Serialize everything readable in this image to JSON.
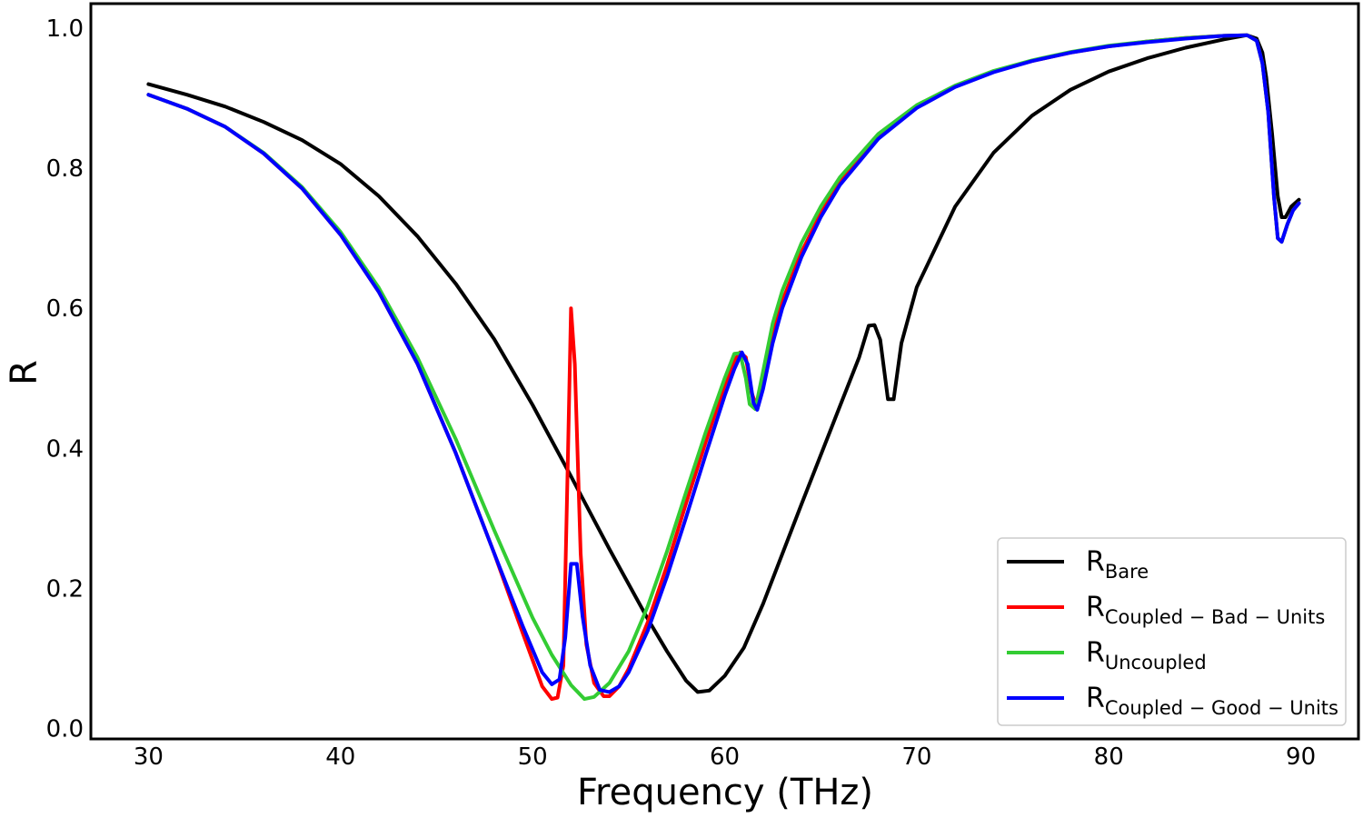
{
  "chart_data": {
    "type": "line",
    "title": "",
    "xlabel": "Frequency (THz)",
    "ylabel": "R",
    "xlim": [
      27,
      93
    ],
    "ylim": [
      -0.015,
      1.035
    ],
    "xticks": [
      30,
      40,
      50,
      60,
      70,
      80,
      90
    ],
    "xtick_labels": [
      "30",
      "40",
      "50",
      "60",
      "70",
      "80",
      "90"
    ],
    "yticks": [
      0.0,
      0.2,
      0.4,
      0.6,
      0.8,
      1.0
    ],
    "ytick_labels": [
      "0.0",
      "0.2",
      "0.4",
      "0.6",
      "0.8",
      "1.0"
    ],
    "grid": false,
    "legend_position": "lower-right",
    "series": [
      {
        "name": "R_Bare",
        "label_main": "R",
        "label_sub": "Bare",
        "color": "#000000",
        "points": [
          [
            30,
            0.92
          ],
          [
            32,
            0.905
          ],
          [
            34,
            0.888
          ],
          [
            36,
            0.866
          ],
          [
            38,
            0.84
          ],
          [
            40,
            0.806
          ],
          [
            42,
            0.76
          ],
          [
            44,
            0.703
          ],
          [
            46,
            0.635
          ],
          [
            48,
            0.556
          ],
          [
            50,
            0.462
          ],
          [
            52,
            0.36
          ],
          [
            54,
            0.256
          ],
          [
            56,
            0.156
          ],
          [
            57,
            0.11
          ],
          [
            58,
            0.068
          ],
          [
            58.6,
            0.052
          ],
          [
            59.2,
            0.054
          ],
          [
            60,
            0.075
          ],
          [
            61,
            0.115
          ],
          [
            62,
            0.178
          ],
          [
            64,
            0.32
          ],
          [
            66,
            0.46
          ],
          [
            67,
            0.53
          ],
          [
            67.5,
            0.575
          ],
          [
            67.8,
            0.576
          ],
          [
            68.1,
            0.555
          ],
          [
            68.5,
            0.47
          ],
          [
            68.8,
            0.47
          ],
          [
            69.2,
            0.55
          ],
          [
            70,
            0.63
          ],
          [
            72,
            0.745
          ],
          [
            74,
            0.822
          ],
          [
            76,
            0.875
          ],
          [
            78,
            0.912
          ],
          [
            80,
            0.938
          ],
          [
            82,
            0.957
          ],
          [
            84,
            0.972
          ],
          [
            86,
            0.984
          ],
          [
            87.2,
            0.99
          ],
          [
            87.7,
            0.985
          ],
          [
            88,
            0.965
          ],
          [
            88.2,
            0.93
          ],
          [
            88.5,
            0.85
          ],
          [
            88.8,
            0.76
          ],
          [
            89,
            0.73
          ],
          [
            89.2,
            0.73
          ],
          [
            89.5,
            0.745
          ],
          [
            89.9,
            0.755
          ]
        ]
      },
      {
        "name": "R_Coupled-Bad-Units",
        "label_main": "R",
        "label_sub": "Coupled − Bad − Units",
        "color": "#ff0000",
        "points": [
          [
            30,
            0.905
          ],
          [
            32,
            0.885
          ],
          [
            34,
            0.859
          ],
          [
            36,
            0.821
          ],
          [
            38,
            0.771
          ],
          [
            40,
            0.705
          ],
          [
            42,
            0.623
          ],
          [
            44,
            0.521
          ],
          [
            46,
            0.393
          ],
          [
            48,
            0.25
          ],
          [
            49.5,
            0.135
          ],
          [
            50.5,
            0.06
          ],
          [
            51,
            0.042
          ],
          [
            51.3,
            0.044
          ],
          [
            51.6,
            0.09
          ],
          [
            51.85,
            0.4
          ],
          [
            52,
            0.6
          ],
          [
            52.2,
            0.52
          ],
          [
            52.5,
            0.25
          ],
          [
            52.8,
            0.12
          ],
          [
            53.2,
            0.065
          ],
          [
            53.7,
            0.046
          ],
          [
            54,
            0.046
          ],
          [
            54.5,
            0.06
          ],
          [
            55,
            0.085
          ],
          [
            56,
            0.152
          ],
          [
            57,
            0.233
          ],
          [
            58,
            0.322
          ],
          [
            59,
            0.408
          ],
          [
            60,
            0.49
          ],
          [
            60.5,
            0.525
          ],
          [
            60.8,
            0.537
          ],
          [
            61.1,
            0.53
          ],
          [
            61.4,
            0.48
          ],
          [
            61.7,
            0.456
          ],
          [
            62,
            0.5
          ],
          [
            62.5,
            0.565
          ],
          [
            63,
            0.61
          ],
          [
            64,
            0.68
          ],
          [
            65,
            0.735
          ],
          [
            66,
            0.78
          ],
          [
            68,
            0.845
          ],
          [
            70,
            0.888
          ],
          [
            72,
            0.917
          ],
          [
            74,
            0.938
          ],
          [
            76,
            0.953
          ],
          [
            78,
            0.965
          ],
          [
            80,
            0.974
          ],
          [
            82,
            0.981
          ],
          [
            84,
            0.986
          ],
          [
            86,
            0.989
          ],
          [
            87.2,
            0.99
          ],
          [
            87.7,
            0.982
          ],
          [
            88,
            0.95
          ],
          [
            88.3,
            0.88
          ],
          [
            88.6,
            0.76
          ],
          [
            88.8,
            0.7
          ],
          [
            89,
            0.695
          ],
          [
            89.3,
            0.72
          ],
          [
            89.6,
            0.74
          ],
          [
            89.9,
            0.75
          ]
        ]
      },
      {
        "name": "R_Uncoupled",
        "label_main": "R",
        "label_sub": "Uncoupled",
        "color": "#33cc33",
        "points": [
          [
            30,
            0.905
          ],
          [
            32,
            0.885
          ],
          [
            34,
            0.859
          ],
          [
            36,
            0.822
          ],
          [
            38,
            0.773
          ],
          [
            40,
            0.709
          ],
          [
            42,
            0.629
          ],
          [
            44,
            0.53
          ],
          [
            46,
            0.413
          ],
          [
            48,
            0.283
          ],
          [
            50,
            0.158
          ],
          [
            51,
            0.105
          ],
          [
            52,
            0.062
          ],
          [
            52.7,
            0.042
          ],
          [
            53.2,
            0.045
          ],
          [
            54,
            0.065
          ],
          [
            55,
            0.11
          ],
          [
            56,
            0.175
          ],
          [
            57,
            0.253
          ],
          [
            58,
            0.338
          ],
          [
            59,
            0.422
          ],
          [
            60,
            0.5
          ],
          [
            60.5,
            0.535
          ],
          [
            60.8,
            0.536
          ],
          [
            61.1,
            0.5
          ],
          [
            61.3,
            0.463
          ],
          [
            61.6,
            0.456
          ],
          [
            62,
            0.51
          ],
          [
            62.5,
            0.578
          ],
          [
            63,
            0.625
          ],
          [
            64,
            0.693
          ],
          [
            65,
            0.745
          ],
          [
            66,
            0.787
          ],
          [
            68,
            0.849
          ],
          [
            70,
            0.89
          ],
          [
            72,
            0.918
          ],
          [
            74,
            0.939
          ],
          [
            76,
            0.954
          ],
          [
            78,
            0.966
          ],
          [
            80,
            0.975
          ],
          [
            82,
            0.981
          ],
          [
            84,
            0.986
          ],
          [
            86,
            0.989
          ],
          [
            87.2,
            0.99
          ],
          [
            87.7,
            0.982
          ],
          [
            88,
            0.95
          ],
          [
            88.3,
            0.88
          ],
          [
            88.6,
            0.76
          ],
          [
            88.8,
            0.7
          ],
          [
            89,
            0.695
          ],
          [
            89.3,
            0.72
          ],
          [
            89.6,
            0.74
          ],
          [
            89.9,
            0.75
          ]
        ]
      },
      {
        "name": "R_Coupled-Good-Units",
        "label_main": "R",
        "label_sub": "Coupled − Good − Units",
        "color": "#0000ff",
        "points": [
          [
            30,
            0.905
          ],
          [
            32,
            0.885
          ],
          [
            34,
            0.859
          ],
          [
            36,
            0.821
          ],
          [
            38,
            0.771
          ],
          [
            40,
            0.705
          ],
          [
            42,
            0.623
          ],
          [
            44,
            0.521
          ],
          [
            46,
            0.393
          ],
          [
            48,
            0.25
          ],
          [
            49.5,
            0.145
          ],
          [
            50.5,
            0.08
          ],
          [
            51,
            0.063
          ],
          [
            51.4,
            0.07
          ],
          [
            51.7,
            0.13
          ],
          [
            52,
            0.235
          ],
          [
            52.3,
            0.235
          ],
          [
            52.6,
            0.16
          ],
          [
            53,
            0.09
          ],
          [
            53.5,
            0.055
          ],
          [
            54,
            0.052
          ],
          [
            54.5,
            0.06
          ],
          [
            55,
            0.08
          ],
          [
            56,
            0.14
          ],
          [
            57,
            0.217
          ],
          [
            58,
            0.302
          ],
          [
            59,
            0.39
          ],
          [
            60,
            0.475
          ],
          [
            60.5,
            0.513
          ],
          [
            60.9,
            0.537
          ],
          [
            61.2,
            0.52
          ],
          [
            61.5,
            0.465
          ],
          [
            61.7,
            0.455
          ],
          [
            62,
            0.485
          ],
          [
            62.5,
            0.55
          ],
          [
            63,
            0.6
          ],
          [
            64,
            0.673
          ],
          [
            65,
            0.73
          ],
          [
            66,
            0.776
          ],
          [
            68,
            0.842
          ],
          [
            70,
            0.886
          ],
          [
            72,
            0.916
          ],
          [
            74,
            0.937
          ],
          [
            76,
            0.953
          ],
          [
            78,
            0.965
          ],
          [
            80,
            0.974
          ],
          [
            82,
            0.98
          ],
          [
            84,
            0.985
          ],
          [
            86,
            0.989
          ],
          [
            87.2,
            0.99
          ],
          [
            87.7,
            0.982
          ],
          [
            88,
            0.95
          ],
          [
            88.3,
            0.88
          ],
          [
            88.6,
            0.76
          ],
          [
            88.8,
            0.7
          ],
          [
            89,
            0.695
          ],
          [
            89.3,
            0.72
          ],
          [
            89.6,
            0.74
          ],
          [
            89.9,
            0.75
          ]
        ]
      }
    ]
  }
}
